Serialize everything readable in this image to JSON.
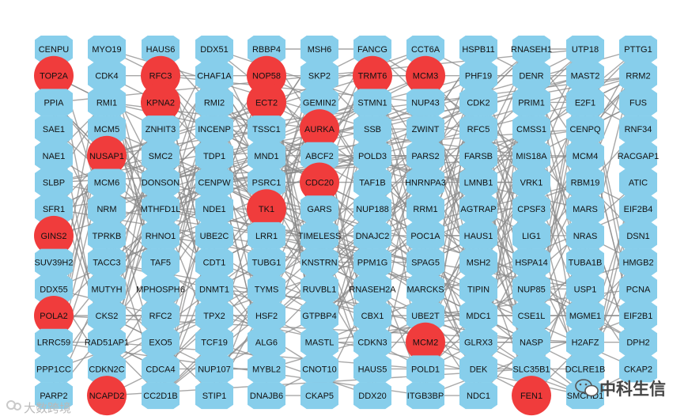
{
  "network": {
    "columns": [
      [
        "CENPU",
        "TOP2A",
        "PPIA",
        "SAE1",
        "NAE1",
        "SLBP",
        "SFR1",
        "GINS2",
        "SUV39H2",
        "DDX55",
        "POLA2",
        "LRRC59",
        "PPP1CC",
        "PARP2"
      ],
      [
        "MYO19",
        "CDK4",
        "RMI1",
        "MCM5",
        "NUSAP1",
        "MCM6",
        "NRM",
        "TPRKB",
        "TACC3",
        "MUTYH",
        "CKS2",
        "RAD51AP1",
        "CDKN2C",
        "NCAPD2"
      ],
      [
        "HAUS6",
        "RFC3",
        "KPNA2",
        "ZNHIT3",
        "SMC2",
        "DONSON",
        "MTHFD1L",
        "RHNO1",
        "TAF5",
        "MPHOSPH6",
        "RFC2",
        "EXO5",
        "CDCA4",
        "CC2D1B"
      ],
      [
        "DDX51",
        "CHAF1A",
        "RMI2",
        "INCENP",
        "TDP1",
        "CENPW",
        "NDE1",
        "UBE2C",
        "CDT1",
        "DNMT1",
        "TPX2",
        "TCF19",
        "NUP107",
        "STIP1"
      ],
      [
        "RBBP4",
        "NOP58",
        "ECT2",
        "TSSC1",
        "MND1",
        "PSRC1",
        "TK1",
        "LRR1",
        "TUBG1",
        "TYMS",
        "HSF2",
        "ALG6",
        "MYBL2",
        "DNAJB6"
      ],
      [
        "MSH6",
        "SKP2",
        "GEMIN2",
        "AURKA",
        "ABCF2",
        "CDC20",
        "GARS",
        "TIMELESS",
        "KNSTRN",
        "RUVBL1",
        "GTPBP4",
        "MASTL",
        "CNOT10",
        "CKAP5"
      ],
      [
        "FANCG",
        "TRMT6",
        "STMN1",
        "SSB",
        "POLD3",
        "TAF1B",
        "NUP188",
        "DNAJC2",
        "PPM1G",
        "RNASEH2A",
        "CBX1",
        "CDKN3",
        "HAUS5",
        "DDX20"
      ],
      [
        "CCT6A",
        "MCM3",
        "NUP43",
        "ZWINT",
        "PARS2",
        "HNRNPA3",
        "RRM1",
        "POC1A",
        "SPAG5",
        "MARCKS",
        "UBE2T",
        "MCM2",
        "POLD1",
        "ITGB3BP"
      ],
      [
        "HSPB11",
        "PHF19",
        "CDK2",
        "RFC5",
        "FARSB",
        "LMNB1",
        "AGTRAP",
        "HAUS1",
        "MSH2",
        "TIPIN",
        "MDC1",
        "GLRX3",
        "DEK",
        "NDC1"
      ],
      [
        "RNASEH1",
        "DENR",
        "PRIM1",
        "CMSS1",
        "MIS18A",
        "VRK1",
        "CPSF3",
        "LIG1",
        "HSPA14",
        "NUP85",
        "CSE1L",
        "NASP",
        "SLC35B1",
        "FEN1"
      ],
      [
        "UTP18",
        "MAST2",
        "E2F1",
        "CENPQ",
        "MCM4",
        "RBM19",
        "MARS",
        "NRAS",
        "TUBA1B",
        "USP1",
        "MGME1",
        "H2AFZ",
        "DCLRE1B",
        "SMCHD1"
      ],
      [
        "PTTG1",
        "RRM2",
        "FUS",
        "RNF34",
        "RACGAP1",
        "ATIC",
        "EIF2B4",
        "DSN1",
        "HMGB2",
        "PCNA",
        "EIF2B1",
        "DPH2",
        "CKAP2",
        ""
      ]
    ],
    "hub_nodes": [
      "TOP2A",
      "RFC3",
      "NOP58",
      "TRMT6",
      "MCM3",
      "KPNA2",
      "ECT2",
      "AURKA",
      "NUSAP1",
      "CDC20",
      "TK1",
      "GINS2",
      "POLA2",
      "MCM2",
      "NCAPD2",
      "FEN1"
    ],
    "colors": {
      "regular_node": "#87CEEB",
      "hub_node": "#F03C3C",
      "edge": "#8a8a8a",
      "background": "#ffffff"
    }
  },
  "watermarks": {
    "left_text": "大数跨境",
    "right_text": "中科生信"
  }
}
